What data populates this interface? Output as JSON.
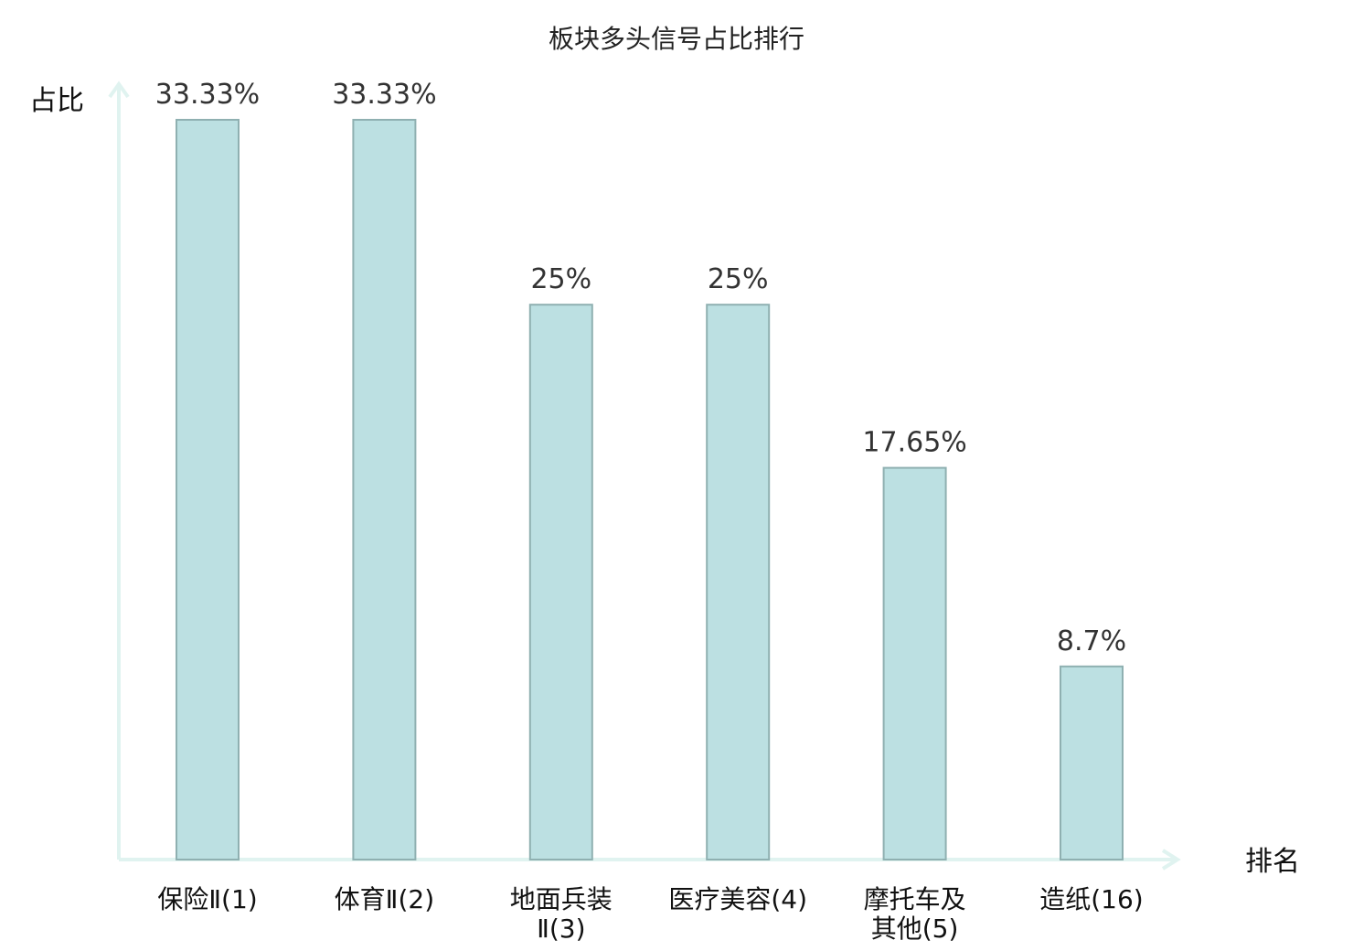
{
  "chart_data": {
    "type": "bar",
    "title": "板块多头信号占比排行",
    "ylabel": "占比",
    "xlabel": "排名",
    "ylim": [
      0,
      33.33
    ],
    "categories": [
      [
        "保险Ⅱ(1)"
      ],
      [
        "体育Ⅱ(2)"
      ],
      [
        "地面兵装",
        "Ⅱ(3)"
      ],
      [
        "医疗美容(4)"
      ],
      [
        "摩托车及",
        "其他(5)"
      ],
      [
        "造纸(16)"
      ]
    ],
    "values": [
      33.33,
      33.33,
      25,
      25,
      17.65,
      8.7
    ],
    "value_labels": [
      "33.33%",
      "33.33%",
      "25%",
      "25%",
      "17.65%",
      "8.7%"
    ],
    "highlight_index": 5,
    "colors": {
      "bar_fill": "#bce0e2",
      "bar_stroke": "#8fb0b1",
      "axis": "#e0f3f0",
      "text": "#111111",
      "value_text": "#333333",
      "highlight_text": "#e02020"
    },
    "grid": false,
    "legend": "none"
  }
}
